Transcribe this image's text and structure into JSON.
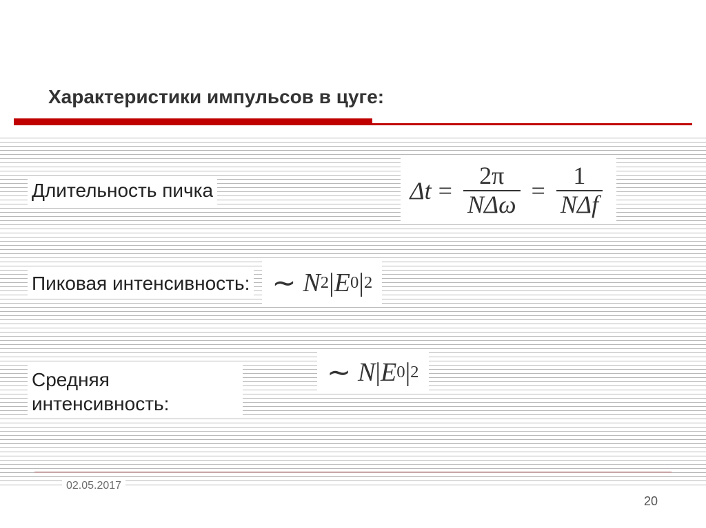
{
  "title": "Характеристики импульсов  в цуге:",
  "rows": {
    "r1": {
      "label": "Длительность пичка",
      "lhs": "Δt",
      "num1": "2π",
      "den1": "NΔω",
      "num2": "1",
      "den2": "NΔf"
    },
    "r2": {
      "label": "Пиковая интенсивность:",
      "tilde": "∼",
      "n": "N",
      "exp1": "2",
      "abs_l": "|",
      "e": "E",
      "sub0": "0",
      "abs_r": "|",
      "exp2": "2"
    },
    "r3": {
      "label": "Средняя интенсивность:",
      "tilde": "∼",
      "n": "N",
      "abs_l": "|",
      "e": "E",
      "sub0": "0",
      "abs_r": "|",
      "exp2": "2"
    }
  },
  "footer": {
    "date": "02.05.2017",
    "page": "20"
  },
  "colors": {
    "accent": "#c00000",
    "text": "#333333",
    "bg": "#ffffff",
    "line": "#b8b8b8"
  }
}
